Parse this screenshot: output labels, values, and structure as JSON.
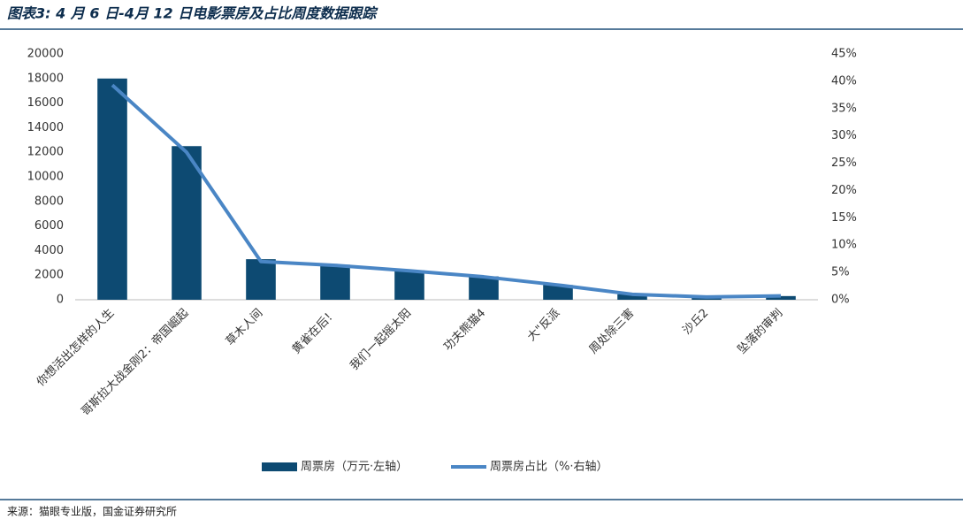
{
  "chart_data": {
    "type": "bar-line",
    "title": "图表3: 4 月 6 日-4月 12 日电影票房及占比周度数据跟踪",
    "source": "来源：猫眼专业版，国金证券研究所",
    "categories": [
      "你想活出怎样的人生",
      "哥斯拉大战金刚2：帝国崛起",
      "草木人间",
      "黄雀在后！",
      "我们一起摇太阳",
      "功夫熊猫4",
      "大\"反派",
      "周处除三害",
      "沙丘2",
      "坠落的审判"
    ],
    "series": [
      {
        "name": "周票房（万元·左轴）",
        "color": "#0d4a72",
        "type": "bar",
        "values": [
          18000,
          12500,
          3300,
          2850,
          2400,
          1900,
          1200,
          450,
          200,
          300
        ]
      },
      {
        "name": "周票房占比（%·右轴）",
        "color": "#4a86c5",
        "type": "line",
        "axis": "y2",
        "values": [
          39.3,
          27.0,
          7.0,
          6.3,
          5.3,
          4.2,
          2.7,
          1.0,
          0.5,
          0.7
        ]
      }
    ],
    "ylim": [
      0,
      20000
    ],
    "yticks": [
      0,
      2000,
      4000,
      6000,
      8000,
      10000,
      12000,
      14000,
      16000,
      18000,
      20000
    ],
    "y2lim": [
      0,
      45
    ],
    "y2ticks": [
      {
        "value": 0,
        "label": "0%"
      },
      {
        "value": 5,
        "label": "5%"
      },
      {
        "value": 10,
        "label": "10%"
      },
      {
        "value": 15,
        "label": "15%"
      },
      {
        "value": 20,
        "label": "20%"
      },
      {
        "value": 25,
        "label": "25%"
      },
      {
        "value": 30,
        "label": "30%"
      },
      {
        "value": 35,
        "label": "35%"
      },
      {
        "value": 40,
        "label": "40%"
      },
      {
        "value": 45,
        "label": "45%"
      }
    ],
    "legend": "bottom"
  }
}
